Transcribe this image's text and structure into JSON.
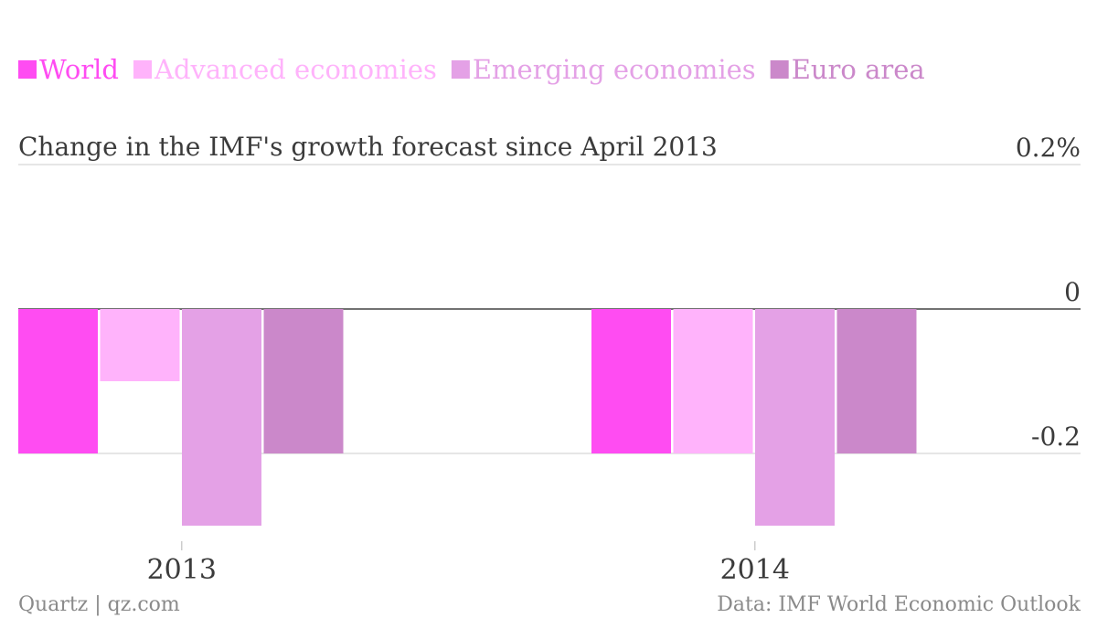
{
  "chart_data": {
    "type": "bar",
    "title": "Change in the IMF's growth forecast since April 2013",
    "categories": [
      "2013",
      "2014"
    ],
    "series": [
      {
        "name": "World",
        "color": "#ff4cf2",
        "values": [
          -0.2,
          -0.2
        ]
      },
      {
        "name": "Advanced economies",
        "color": "#ffb3fb",
        "values": [
          -0.1,
          -0.2
        ]
      },
      {
        "name": "Emerging economies",
        "color": "#e4a1e6",
        "values": [
          -0.3,
          -0.3
        ]
      },
      {
        "name": "Euro area",
        "color": "#cb88ca",
        "values": [
          -0.2,
          -0.2
        ]
      }
    ],
    "ylim": [
      -0.3,
      0.2
    ],
    "yticks": [
      {
        "value": 0.2,
        "label": "0.2%"
      },
      {
        "value": 0,
        "label": "0"
      },
      {
        "value": -0.2,
        "label": "-0.2"
      }
    ],
    "legend_position": "top-left",
    "grid": true
  },
  "footer": {
    "source_left": "Quartz | qz.com",
    "source_right": "Data: IMF World Economic Outlook"
  }
}
